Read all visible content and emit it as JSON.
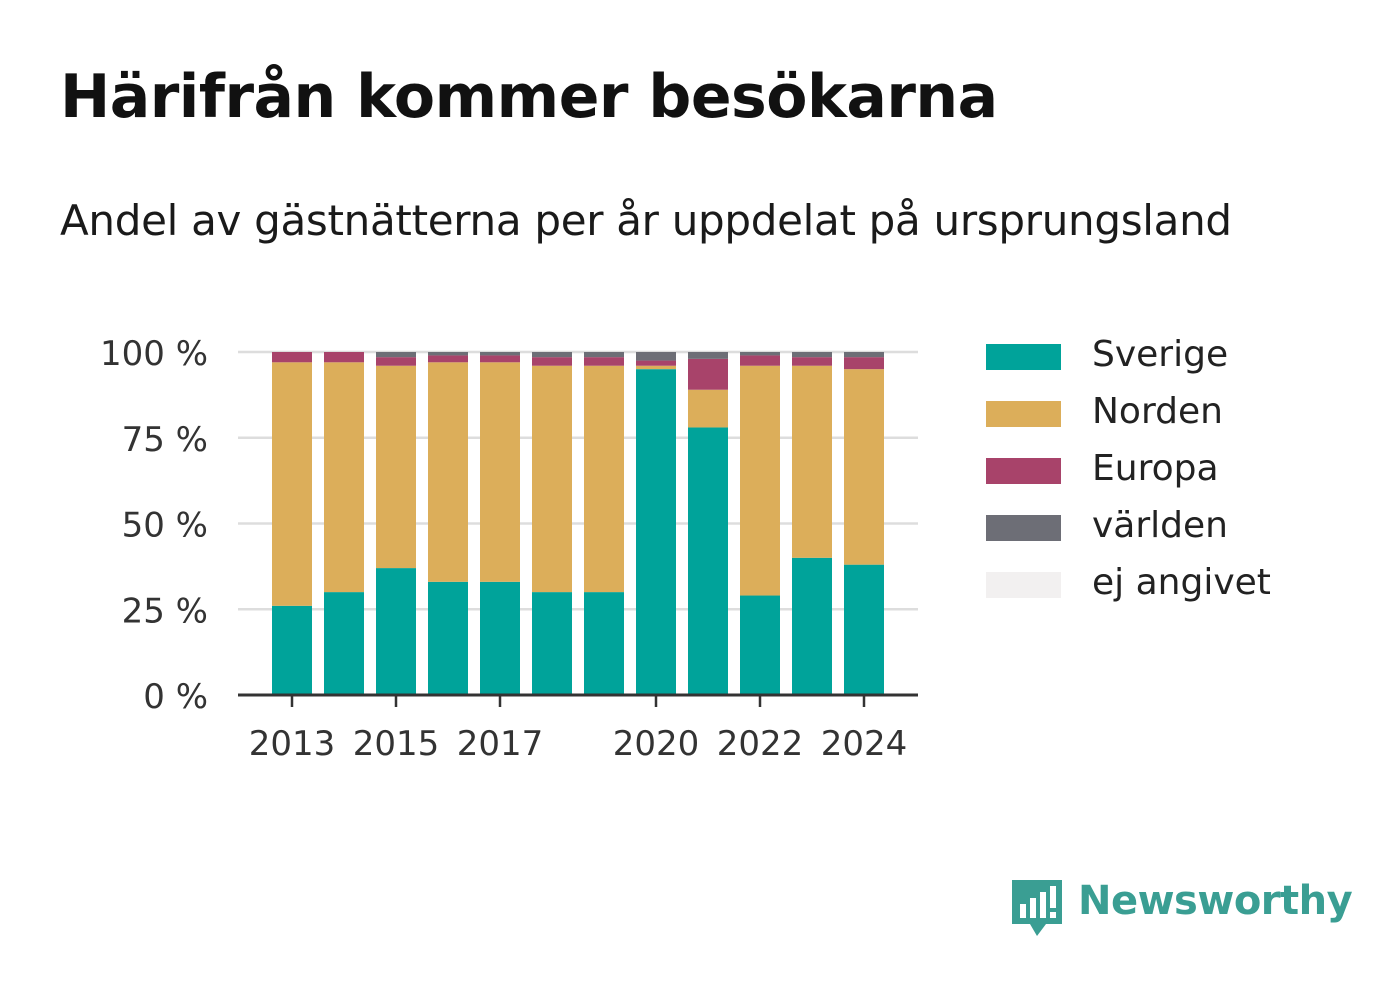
{
  "title": "Härifrån kommer besökarna",
  "subtitle": "Andel av gästnätterna per år uppdelat på ursprungsland",
  "brand": {
    "name": "Newsworthy",
    "icon": "newsworthy-logo-icon"
  },
  "colors": {
    "Sverige": "#00a39a",
    "Norden": "#dcae5a",
    "Europa": "#a8436a",
    "världen": "#6d6e76",
    "ej angivet": "#f2f0f0",
    "grid": "#dddddd",
    "axis": "#333333"
  },
  "chart_data": {
    "type": "bar",
    "stacked": true,
    "x": [
      2013,
      2014,
      2015,
      2016,
      2017,
      2018,
      2019,
      2020,
      2021,
      2022,
      2023,
      2024
    ],
    "x_tick_labels": [
      "2013",
      "2015",
      "2017",
      "2020",
      "2022",
      "2024"
    ],
    "y_tick_labels": [
      "0 %",
      "25 %",
      "50 %",
      "75 %",
      "100 %"
    ],
    "ylim": [
      0,
      100
    ],
    "grid": true,
    "legend_position": "right",
    "series": [
      {
        "name": "Sverige",
        "values": [
          26,
          30,
          37,
          33,
          33,
          30,
          30,
          95,
          78,
          29,
          40,
          38
        ]
      },
      {
        "name": "Norden",
        "values": [
          71,
          67,
          59,
          64,
          64,
          66,
          66,
          1,
          11,
          67,
          56,
          57
        ]
      },
      {
        "name": "Europa",
        "values": [
          3,
          3,
          2.5,
          2,
          2,
          2.5,
          2.5,
          1.5,
          9,
          3,
          2.5,
          3.5
        ]
      },
      {
        "name": "världen",
        "values": [
          0,
          0,
          1.5,
          1,
          1,
          1.5,
          1.5,
          2.5,
          2,
          1,
          1.5,
          1.5
        ]
      },
      {
        "name": "ej angivet",
        "values": [
          0,
          0,
          0,
          0,
          0,
          0,
          0,
          0,
          0,
          0,
          0,
          0
        ]
      }
    ]
  }
}
